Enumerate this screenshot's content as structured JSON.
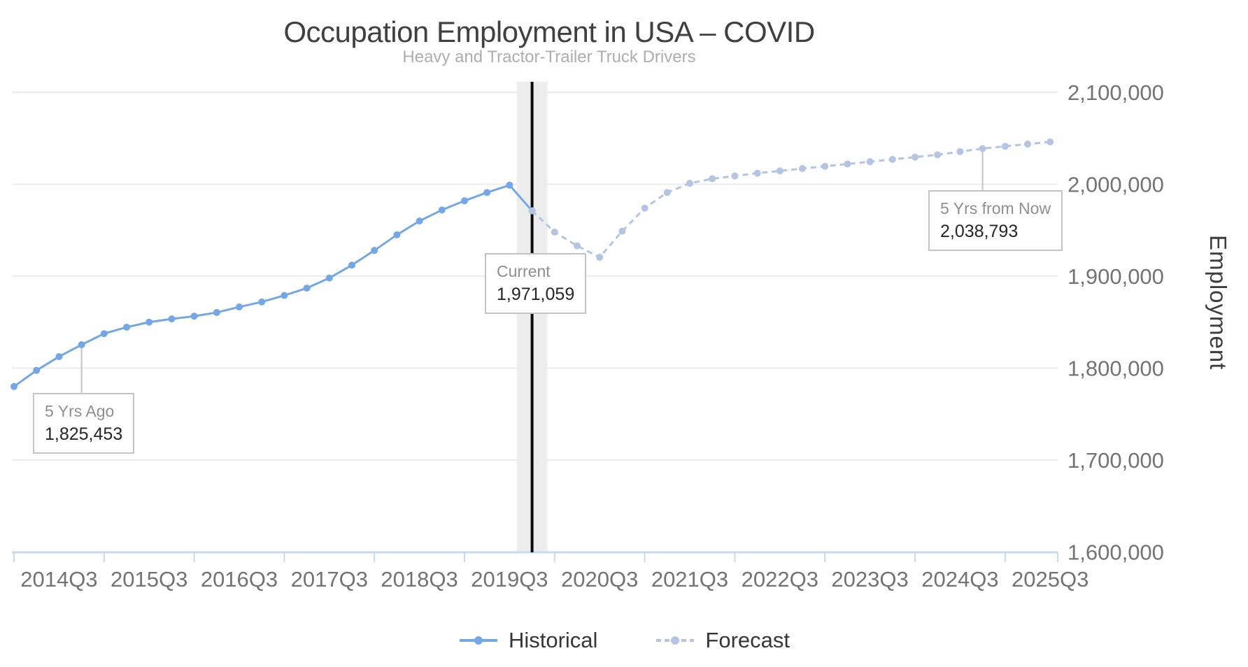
{
  "title": "Occupation Employment in USA – COVID",
  "subtitle": "Heavy and Tractor-Trailer Truck Drivers",
  "y_axis": {
    "label": "Employment",
    "ticks": [
      "2,100,000",
      "2,000,000",
      "1,900,000",
      "1,800,000",
      "1,700,000",
      "1,600,000"
    ]
  },
  "x_axis": {
    "ticks": [
      "2014Q3",
      "2015Q3",
      "2016Q3",
      "2017Q3",
      "2018Q3",
      "2019Q3",
      "2020Q3",
      "2021Q3",
      "2022Q3",
      "2023Q3",
      "2024Q3",
      "2025Q3"
    ]
  },
  "annotations": {
    "past": {
      "label": "5 Yrs Ago",
      "value": "1,825,453"
    },
    "current": {
      "label": "Current",
      "value": "1,971,059"
    },
    "future": {
      "label": "5 Yrs from Now",
      "value": "2,038,793"
    }
  },
  "legend": [
    {
      "label": "Historical"
    },
    {
      "label": "Forecast"
    }
  ],
  "colors": {
    "historical": "#74a7e6",
    "forecast": "#b4c4e2",
    "grid": "#ececec",
    "axis": "#c7dbec",
    "band": "#ededed",
    "divider": "#0b0b0b",
    "callout": "#c4c4c4",
    "tick_text": "#737373",
    "title": "#404040",
    "subtitle": "#aeaeae",
    "legend_text": "#363636",
    "ann_label": "#8f8f8f",
    "ann_value": "#262626"
  },
  "chart_data": {
    "type": "line",
    "title": "Occupation Employment in USA – COVID",
    "subtitle": "Heavy and Tractor-Trailer Truck Drivers",
    "xlabel": "",
    "ylabel": "Employment",
    "ylim": [
      1600000,
      2100000
    ],
    "grid": "horizontal",
    "legend_position": "bottom",
    "x_unit": "quarters, q=0 at 2014Q3, one point per quarter",
    "x_ticks": [
      "2014Q3",
      "2015Q3",
      "2016Q3",
      "2017Q3",
      "2018Q3",
      "2019Q3",
      "2020Q3",
      "2021Q3",
      "2022Q3",
      "2023Q3",
      "2024Q3",
      "2025Q3"
    ],
    "y_ticks": [
      {
        "label": "2,100,000",
        "value": 2100000
      },
      {
        "label": "2,000,000",
        "value": 2000000
      },
      {
        "label": "1,900,000",
        "value": 1900000
      },
      {
        "label": "1,800,000",
        "value": 1800000
      },
      {
        "label": "1,700,000",
        "value": 1700000
      },
      {
        "label": "1,600,000",
        "value": 1600000
      }
    ],
    "series": [
      {
        "name": "Historical",
        "style": "solid",
        "color": "#74a7e6",
        "start_q": 0,
        "values": [
          1780000,
          1797500,
          1812500,
          1825453,
          1837500,
          1844500,
          1850000,
          1853500,
          1856500,
          1860500,
          1866500,
          1872000,
          1879000,
          1887000,
          1898000,
          1912000,
          1928000,
          1945000,
          1960000,
          1972000,
          1982000,
          1991000,
          1999000,
          1971059
        ]
      },
      {
        "name": "Forecast",
        "style": "dashed",
        "color": "#b4c4e2",
        "start_q": 23,
        "values": [
          1971059,
          1948000,
          1933000,
          1920500,
          1949000,
          1974000,
          1991000,
          2001000,
          2006000,
          2009000,
          2012000,
          2014500,
          2017000,
          2019500,
          2022000,
          2024500,
          2027000,
          2029500,
          2032000,
          2035500,
          2038793,
          2041300,
          2043700,
          2046000
        ]
      }
    ],
    "annotations": {
      "past": {
        "q": 3,
        "value": 1825453,
        "label": "5 Yrs Ago"
      },
      "current": {
        "q": 23,
        "value": 1971059,
        "label": "Current"
      },
      "future": {
        "q": 43,
        "value": 2038793,
        "label": "5 Yrs from Now"
      }
    }
  }
}
